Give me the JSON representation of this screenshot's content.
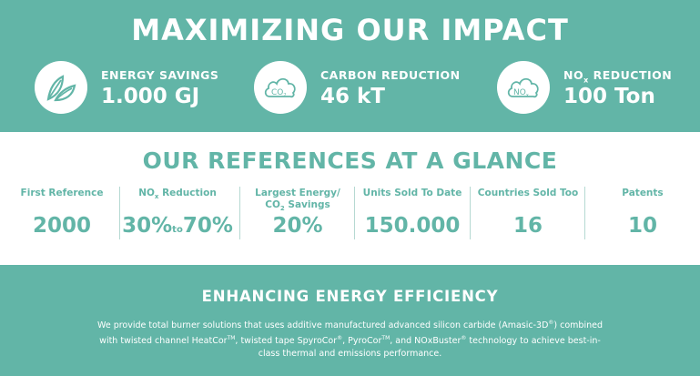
{
  "header": {
    "title": "MAXIMIZING OUR IMPACT"
  },
  "metrics": [
    {
      "icon": "leaf-icon",
      "label": "ENERGY SAVINGS",
      "value": "1.000 GJ"
    },
    {
      "icon": "co2-cloud-icon",
      "label": "CARBON REDUCTION",
      "value": "46 kT",
      "icon_text": "CO",
      "icon_sub": "2"
    },
    {
      "icon": "nox-cloud-icon",
      "label_main": "NO",
      "label_sub": "x",
      "label_rest": " REDUCTION",
      "value": "100 Ton",
      "icon_text": "NO",
      "icon_sub": "x"
    }
  ],
  "references": {
    "title": "OUR REFERENCES AT A GLANCE",
    "columns": [
      {
        "header": "First Reference",
        "value": "2000"
      },
      {
        "header_main": "NO",
        "header_sub": "x",
        "header_rest": " Reduction",
        "value_from": "30%",
        "value_to_word": "to",
        "value_to": "70%"
      },
      {
        "header_line1": "Largest Energy/",
        "header_line2_main": "CO",
        "header_line2_sub": "2",
        "header_line2_rest": " Savings",
        "value": "20%"
      },
      {
        "header": "Units Sold To Date",
        "value": "150.000"
      },
      {
        "header": "Countries Sold Too",
        "value": "16"
      },
      {
        "header": "Patents",
        "value": "10"
      }
    ]
  },
  "efficiency": {
    "title": "ENHANCING ENERGY EFFICIENCY",
    "p1": "We provide total burner solutions that uses additive manufactured advanced silicon carbide (Amasic-3D",
    "p1_sup": "®",
    "p1_end": ")",
    "p2": " combined with twisted channel HeatCor",
    "p2_sup": "TM",
    "p3": ", twisted tape SpyroCor",
    "p3_sup": "®",
    "p4": ", PyroCor",
    "p4_sup": "TM",
    "p5": ", and NOxBuster",
    "p5_sup": "®",
    "p6": " technology to achieve best-in-class thermal and emissions performance."
  },
  "colors": {
    "teal": "#62b5a7",
    "white": "#ffffff"
  }
}
